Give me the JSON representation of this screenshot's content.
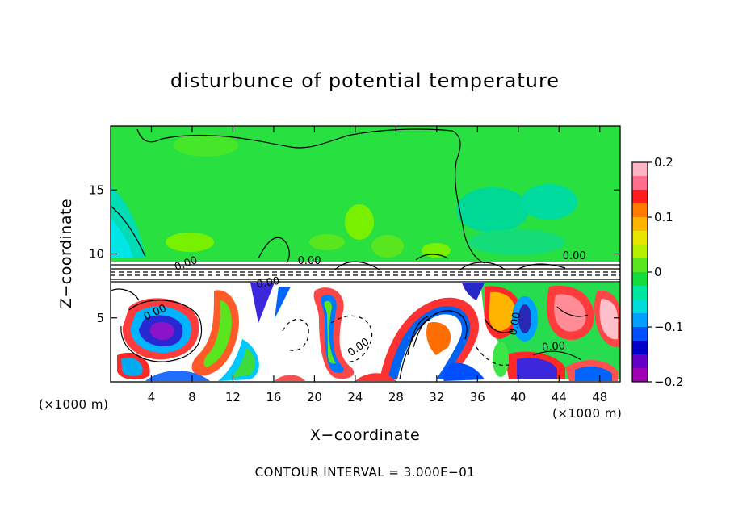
{
  "chart_data": {
    "type": "heatmap",
    "title": "disturbunce of potential temperature",
    "xlabel": "X−coordinate",
    "ylabel": "Z−coordinate",
    "x_unit_left": "(×1000 m)",
    "x_unit_right": "(×1000 m)",
    "xlim": [
      0,
      50
    ],
    "ylim": [
      0,
      20
    ],
    "x_ticks": [
      4,
      8,
      12,
      16,
      20,
      24,
      28,
      32,
      36,
      40,
      44,
      48
    ],
    "x_tick_labels": [
      "4",
      "8",
      "12",
      "16",
      "20",
      "24",
      "28",
      "32",
      "36",
      "40",
      "44",
      "48"
    ],
    "y_ticks": [
      5,
      10,
      15
    ],
    "y_tick_labels": [
      "5",
      "10",
      "15"
    ],
    "colorbar": {
      "min": -0.2,
      "max": 0.2,
      "ticks": [
        0.2,
        0.1,
        0,
        -0.1,
        -0.2
      ],
      "tick_labels": [
        "0.2",
        "0.1",
        "0",
        "−0.1",
        "−0.2"
      ],
      "colors": [
        "#ffb4c4",
        "#ff6e8c",
        "#ff1e1e",
        "#ff7a00",
        "#ffb400",
        "#e6e600",
        "#b4f000",
        "#5ae61e",
        "#14dc3c",
        "#00e6a0",
        "#00dcdc",
        "#00a0ff",
        "#0050ff",
        "#0000c8",
        "#6400c8",
        "#a000b4"
      ]
    },
    "contour_labels": [
      "0.00",
      "0.00",
      "0.00",
      "0.00",
      "0.00",
      "0.00",
      "0.00",
      "0.00"
    ],
    "grid": false,
    "legend": "colorbar-right"
  },
  "contour_note": "CONTOUR INTERVAL = 3.000E−01"
}
